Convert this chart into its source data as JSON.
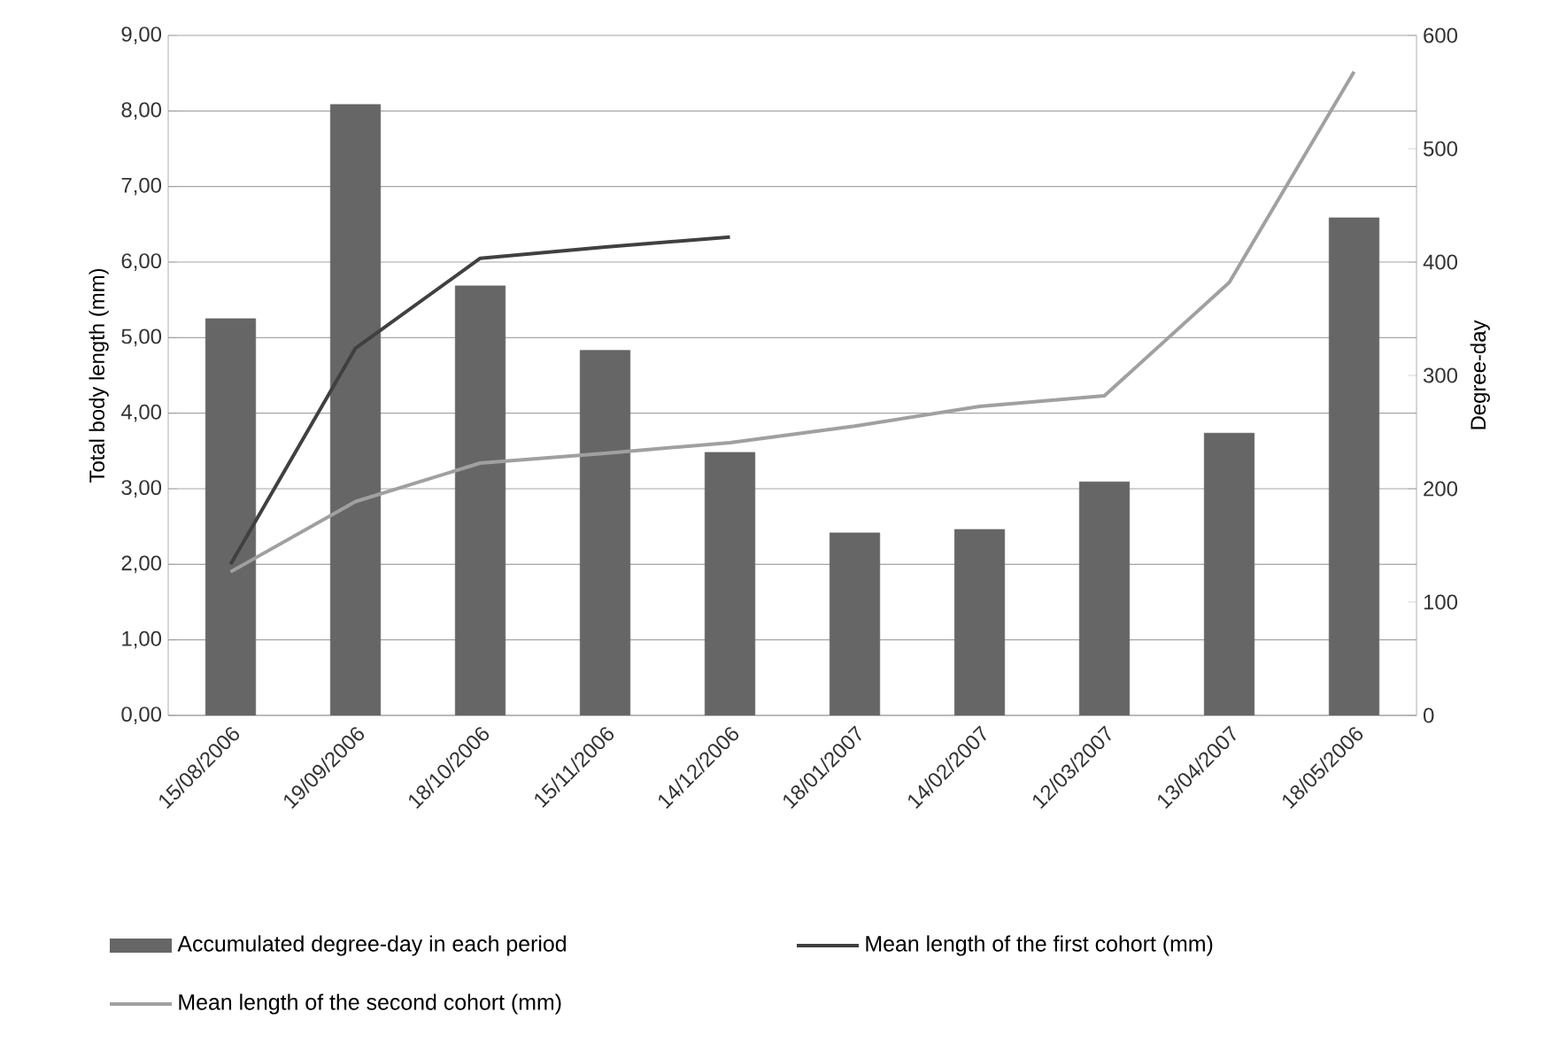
{
  "chart_data": {
    "type": "bar",
    "categories": [
      "15/08/2006",
      "19/09/2006",
      "18/10/2006",
      "15/11/2006",
      "14/12/2006",
      "18/01/2007",
      "14/02/2007",
      "12/03/2007",
      "13/04/2007",
      "18/05/2006"
    ],
    "ylabel": "Total body length (mm)",
    "y2label": "Degree-day",
    "ylim": [
      0,
      9
    ],
    "yticks": [
      {
        "value": 0,
        "label": "0,00"
      },
      {
        "value": 1,
        "label": "1,00"
      },
      {
        "value": 2,
        "label": "2,00"
      },
      {
        "value": 3,
        "label": "3,00"
      },
      {
        "value": 4,
        "label": "4,00"
      },
      {
        "value": 5,
        "label": "5,00"
      },
      {
        "value": 6,
        "label": "6,00"
      },
      {
        "value": 7,
        "label": "7,00"
      },
      {
        "value": 8,
        "label": "8,00"
      },
      {
        "value": 9,
        "label": "9,00"
      }
    ],
    "y2lim": [
      0,
      600
    ],
    "y2ticks": [
      0,
      100,
      200,
      300,
      400,
      500,
      600
    ],
    "grid": "y",
    "legend": "bottom",
    "series": [
      {
        "name": "Accumulated degree-day in each period",
        "axis": "y2",
        "color": "#666666",
        "values": [
          350,
          539,
          379,
          322,
          232,
          161,
          164,
          206,
          249,
          439
        ]
      },
      {
        "name": "Mean length of the first cohort (mm)",
        "type": "line",
        "color": "#404040",
        "values": [
          2.0,
          4.86,
          6.05,
          6.2,
          6.33,
          null,
          null,
          null,
          null,
          null
        ]
      },
      {
        "name": "Mean length of the second cohort (mm)",
        "type": "line",
        "color": "#a0a0a0",
        "values": [
          1.9,
          2.83,
          3.34,
          3.47,
          3.61,
          3.83,
          4.09,
          4.23,
          5.73,
          8.52
        ]
      }
    ]
  }
}
